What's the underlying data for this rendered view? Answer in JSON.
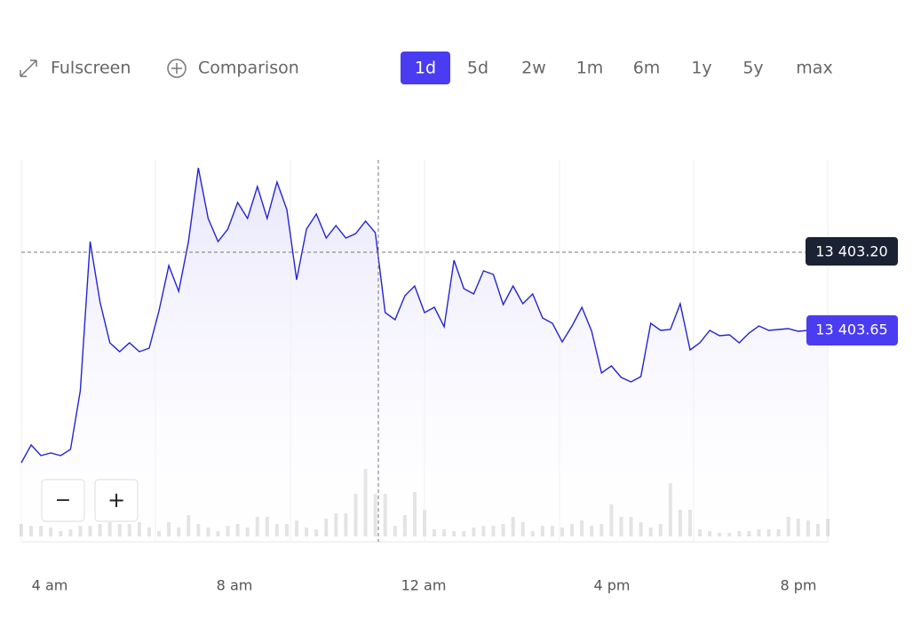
{
  "toolbar": {
    "fullscreen": "Fulscreen",
    "comparison": "Comparison",
    "ranges": [
      "1d",
      "5d",
      "2w",
      "1m",
      "6m",
      "1y",
      "5y",
      "max"
    ],
    "active_range": "1d"
  },
  "zoom": {
    "out": "−",
    "in": "+"
  },
  "chart_data": {
    "type": "line",
    "x_labels": [
      "4 am",
      "8 am",
      "12 am",
      "4 pm",
      "8 pm"
    ],
    "series": [
      {
        "name": "price",
        "color": "#2424d4",
        "values": [
          89,
          109,
          97,
          100,
          97,
          104,
          170,
          338,
          270,
          224,
          214,
          224,
          214,
          218,
          260,
          311,
          282,
          338,
          421,
          364,
          338,
          352,
          382,
          364,
          400,
          364,
          405,
          374,
          295,
          352,
          369,
          342,
          356,
          342,
          347,
          361,
          348,
          258,
          250,
          277,
          288,
          258,
          264,
          242,
          317,
          285,
          279,
          305,
          301,
          267,
          288,
          268,
          279,
          252,
          246,
          225,
          243,
          264,
          237,
          190,
          198,
          185,
          180,
          186,
          246,
          238,
          239,
          268,
          216,
          224,
          238,
          232,
          233,
          224,
          235,
          243,
          238,
          239,
          240,
          237,
          238,
          239,
          238
        ]
      }
    ],
    "ylim": [
      0,
      430
    ],
    "volume": {
      "color": "#dcdcdc",
      "values": [
        14,
        12,
        12,
        10,
        6,
        8,
        12,
        12,
        14,
        16,
        14,
        14,
        16,
        10,
        6,
        16,
        10,
        24,
        14,
        10,
        6,
        12,
        14,
        10,
        22,
        22,
        14,
        14,
        18,
        10,
        8,
        20,
        26,
        26,
        48,
        76,
        48,
        48,
        12,
        24,
        50,
        30,
        8,
        8,
        6,
        6,
        10,
        12,
        12,
        14,
        22,
        16,
        6,
        12,
        12,
        10,
        14,
        18,
        12,
        14,
        36,
        22,
        22,
        16,
        10,
        14,
        60,
        30,
        30,
        8,
        6,
        4,
        4,
        6,
        6,
        8,
        8,
        8,
        22,
        20,
        18,
        14,
        20
      ],
      "vlim": [
        0,
        100
      ]
    },
    "crosshair_label": "13 403.20",
    "last_price_label": "13 403.65",
    "grid": true
  }
}
